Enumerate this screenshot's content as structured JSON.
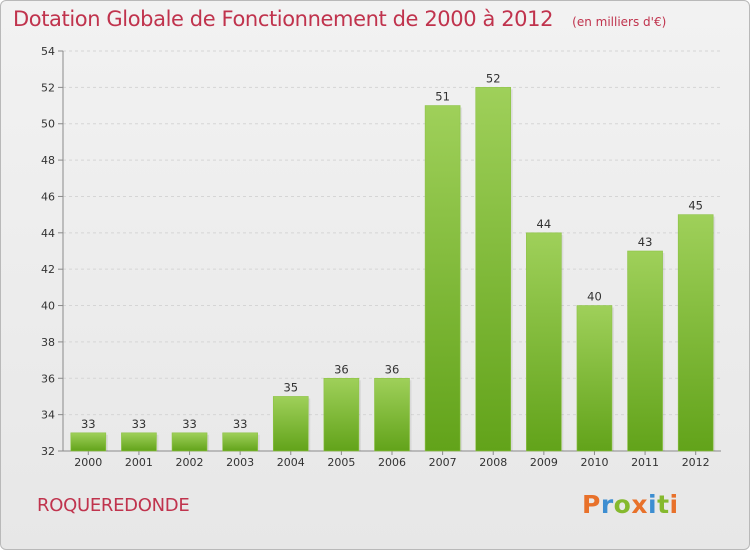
{
  "colors": {
    "title": "#c0334d",
    "bar_light": "#9fd05a",
    "bar_dark": "#62a31a",
    "gridline": "#d5d5d5",
    "axis": "#8a8a8a"
  },
  "chart_data": {
    "type": "bar",
    "title": "Dotation Globale de Fonctionnement de 2000 à 2012",
    "unit_note": "(en milliers d'€)",
    "categories": [
      "2000",
      "2001",
      "2002",
      "2003",
      "2004",
      "2005",
      "2006",
      "2007",
      "2008",
      "2009",
      "2010",
      "2011",
      "2012"
    ],
    "values": [
      33,
      33,
      33,
      33,
      35,
      36,
      36,
      51,
      52,
      44,
      40,
      43,
      45
    ],
    "ylim": [
      32,
      54
    ],
    "yticks": [
      32,
      34,
      36,
      38,
      40,
      42,
      44,
      46,
      48,
      50,
      52,
      54
    ],
    "grid": true,
    "xlabel": "",
    "ylabel": ""
  },
  "commune": "ROQUEREDONDE",
  "brand": {
    "letters": [
      {
        "ch": "P",
        "color": "#e8712a"
      },
      {
        "ch": "r",
        "color": "#3d8ed1"
      },
      {
        "ch": "o",
        "color": "#85b92e"
      },
      {
        "ch": "x",
        "color": "#e8712a"
      },
      {
        "ch": "i",
        "color": "#3d8ed1"
      },
      {
        "ch": "t",
        "color": "#85b92e"
      },
      {
        "ch": "i",
        "color": "#e8712a"
      }
    ]
  }
}
